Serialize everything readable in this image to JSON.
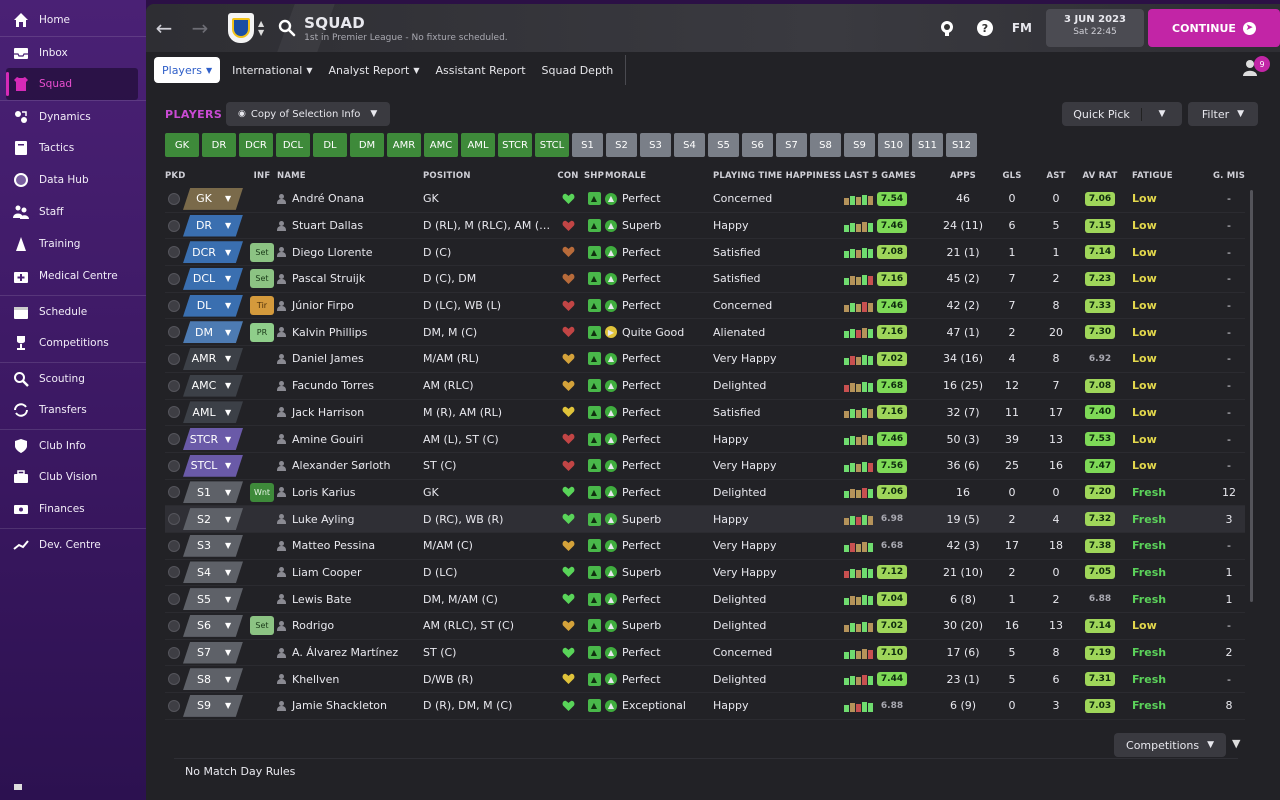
{
  "sidebar": {
    "items": [
      {
        "label": "Home",
        "icon": "home-icon"
      },
      {
        "label": "Inbox",
        "icon": "inbox-icon"
      },
      {
        "label": "Squad",
        "icon": "squad-icon",
        "active": true
      },
      {
        "label": "Dynamics",
        "icon": "dynamics-icon"
      },
      {
        "label": "Tactics",
        "icon": "tactics-icon"
      },
      {
        "label": "Data Hub",
        "icon": "data-hub-icon"
      },
      {
        "label": "Staff",
        "icon": "staff-icon"
      },
      {
        "label": "Training",
        "icon": "training-icon"
      },
      {
        "label": "Medical Centre",
        "icon": "medical-icon"
      },
      {
        "label": "Schedule",
        "icon": "calendar-icon"
      },
      {
        "label": "Competitions",
        "icon": "trophy-icon"
      },
      {
        "label": "Scouting",
        "icon": "scouting-icon"
      },
      {
        "label": "Transfers",
        "icon": "transfers-icon"
      },
      {
        "label": "Club Info",
        "icon": "shield-icon"
      },
      {
        "label": "Club Vision",
        "icon": "briefcase-icon"
      },
      {
        "label": "Finances",
        "icon": "finances-icon"
      },
      {
        "label": "Dev. Centre",
        "icon": "dev-centre-icon"
      }
    ]
  },
  "header": {
    "title": "SQUAD",
    "subtitle": "1st in Premier League - No fixture scheduled.",
    "fm_label": "FM",
    "date": "3 JUN 2023",
    "time": "Sat 22:45",
    "continue_label": "CONTINUE"
  },
  "tabs": {
    "items": [
      "Players",
      "International",
      "Analyst Report",
      "Assistant Report",
      "Squad Depth"
    ],
    "notification_count": "9"
  },
  "toolbar": {
    "players_label": "PLAYERS",
    "view_label": "Copy of Selection Info",
    "quick_pick": "Quick Pick",
    "filter": "Filter"
  },
  "positions": [
    "GK",
    "DR",
    "DCR",
    "DCL",
    "DL",
    "DM",
    "AMR",
    "AMC",
    "AML",
    "STCR",
    "STCL",
    "S1",
    "S2",
    "S3",
    "S4",
    "S5",
    "S6",
    "S7",
    "S8",
    "S9",
    "S10",
    "S11",
    "S12"
  ],
  "columns": [
    "PKD",
    "INF",
    "NAME",
    "POSITION",
    "CON",
    "SHP",
    "MORALE",
    "PLAYING TIME HAPPINESS",
    "LAST 5 GAMES",
    "APPS",
    "GLS",
    "AST",
    "AV RAT",
    "FATIGUE",
    "G. MIS"
  ],
  "players": [
    {
      "pkd": "GK",
      "inf": "",
      "name": "André Onana",
      "pos": "GK",
      "morale": "Perfect",
      "pth": "Concerned",
      "l5": "7.54",
      "apps": "46",
      "gls": "0",
      "ast": "0",
      "avr": "7.06",
      "fat": "Low",
      "gmis": "-"
    },
    {
      "pkd": "DR",
      "inf": "",
      "name": "Stuart Dallas",
      "pos": "D (RL), M (RLC), AM (…",
      "morale": "Superb",
      "pth": "Happy",
      "l5": "7.46",
      "apps": "24 (11)",
      "gls": "6",
      "ast": "5",
      "avr": "7.15",
      "fat": "Low",
      "gmis": "-"
    },
    {
      "pkd": "DCR",
      "inf": "Set",
      "name": "Diego Llorente",
      "pos": "D (C)",
      "morale": "Perfect",
      "pth": "Satisfied",
      "l5": "7.08",
      "apps": "21 (1)",
      "gls": "1",
      "ast": "1",
      "avr": "7.14",
      "fat": "Low",
      "gmis": "-"
    },
    {
      "pkd": "DCL",
      "inf": "Set",
      "name": "Pascal Struijk",
      "pos": "D (C), DM",
      "morale": "Perfect",
      "pth": "Satisfied",
      "l5": "7.16",
      "apps": "45 (2)",
      "gls": "7",
      "ast": "2",
      "avr": "7.23",
      "fat": "Low",
      "gmis": "-"
    },
    {
      "pkd": "DL",
      "inf": "Tir",
      "name": "Júnior Firpo",
      "pos": "D (LC), WB (L)",
      "morale": "Perfect",
      "pth": "Concerned",
      "l5": "7.46",
      "apps": "42 (2)",
      "gls": "7",
      "ast": "8",
      "avr": "7.33",
      "fat": "Low",
      "gmis": "-"
    },
    {
      "pkd": "DM",
      "inf": "PR",
      "name": "Kalvin Phillips",
      "pos": "DM, M (C)",
      "morale": "Quite Good",
      "pth": "Alienated",
      "l5": "7.16",
      "apps": "47 (1)",
      "gls": "2",
      "ast": "20",
      "avr": "7.30",
      "fat": "Low",
      "gmis": "-"
    },
    {
      "pkd": "AMR",
      "inf": "",
      "name": "Daniel James",
      "pos": "M/AM (RL)",
      "morale": "Perfect",
      "pth": "Very Happy",
      "l5": "7.02",
      "apps": "34 (16)",
      "gls": "4",
      "ast": "8",
      "avr": "6.92",
      "fat": "Low",
      "gmis": "-"
    },
    {
      "pkd": "AMC",
      "inf": "",
      "name": "Facundo Torres",
      "pos": "AM (RLC)",
      "morale": "Perfect",
      "pth": "Delighted",
      "l5": "7.68",
      "apps": "16 (25)",
      "gls": "12",
      "ast": "7",
      "avr": "7.08",
      "fat": "Low",
      "gmis": "-"
    },
    {
      "pkd": "AML",
      "inf": "",
      "name": "Jack Harrison",
      "pos": "M (R), AM (RL)",
      "morale": "Perfect",
      "pth": "Satisfied",
      "l5": "7.16",
      "apps": "32 (7)",
      "gls": "11",
      "ast": "17",
      "avr": "7.40",
      "fat": "Low",
      "gmis": "-"
    },
    {
      "pkd": "STCR",
      "inf": "",
      "name": "Amine Gouiri",
      "pos": "AM (L), ST (C)",
      "morale": "Perfect",
      "pth": "Happy",
      "l5": "7.46",
      "apps": "50 (3)",
      "gls": "39",
      "ast": "13",
      "avr": "7.53",
      "fat": "Low",
      "gmis": "-"
    },
    {
      "pkd": "STCL",
      "inf": "",
      "name": "Alexander Sørloth",
      "pos": "ST (C)",
      "morale": "Perfect",
      "pth": "Very Happy",
      "l5": "7.56",
      "apps": "36 (6)",
      "gls": "25",
      "ast": "16",
      "avr": "7.47",
      "fat": "Low",
      "gmis": "-"
    },
    {
      "pkd": "S1",
      "inf": "Wnt",
      "name": "Loris Karius",
      "pos": "GK",
      "morale": "Perfect",
      "pth": "Delighted",
      "l5": "7.06",
      "apps": "16",
      "gls": "0",
      "ast": "0",
      "avr": "7.20",
      "fat": "Fresh",
      "gmis": "12"
    },
    {
      "pkd": "S2",
      "inf": "",
      "name": "Luke Ayling",
      "pos": "D (RC), WB (R)",
      "morale": "Superb",
      "pth": "Happy",
      "l5": "6.98",
      "apps": "19 (5)",
      "gls": "2",
      "ast": "4",
      "avr": "7.32",
      "fat": "Fresh",
      "gmis": "3"
    },
    {
      "pkd": "S3",
      "inf": "",
      "name": "Matteo Pessina",
      "pos": "M/AM (C)",
      "morale": "Perfect",
      "pth": "Very Happy",
      "l5": "6.68",
      "apps": "42 (3)",
      "gls": "17",
      "ast": "18",
      "avr": "7.38",
      "fat": "Fresh",
      "gmis": "-"
    },
    {
      "pkd": "S4",
      "inf": "",
      "name": "Liam Cooper",
      "pos": "D (LC)",
      "morale": "Superb",
      "pth": "Very Happy",
      "l5": "7.12",
      "apps": "21 (10)",
      "gls": "2",
      "ast": "0",
      "avr": "7.05",
      "fat": "Fresh",
      "gmis": "1"
    },
    {
      "pkd": "S5",
      "inf": "",
      "name": "Lewis Bate",
      "pos": "DM, M/AM (C)",
      "morale": "Perfect",
      "pth": "Delighted",
      "l5": "7.04",
      "apps": "6 (8)",
      "gls": "1",
      "ast": "2",
      "avr": "6.88",
      "fat": "Fresh",
      "gmis": "1"
    },
    {
      "pkd": "S6",
      "inf": "Set",
      "name": "Rodrigo",
      "pos": "AM (RLC), ST (C)",
      "morale": "Superb",
      "pth": "Delighted",
      "l5": "7.02",
      "apps": "30 (20)",
      "gls": "16",
      "ast": "13",
      "avr": "7.14",
      "fat": "Low",
      "gmis": "-"
    },
    {
      "pkd": "S7",
      "inf": "",
      "name": "A. Álvarez Martínez",
      "pos": "ST (C)",
      "morale": "Perfect",
      "pth": "Concerned",
      "l5": "7.10",
      "apps": "17 (6)",
      "gls": "5",
      "ast": "8",
      "avr": "7.19",
      "fat": "Fresh",
      "gmis": "2"
    },
    {
      "pkd": "S8",
      "inf": "",
      "name": "Khellven",
      "pos": "D/WB (R)",
      "morale": "Perfect",
      "pth": "Delighted",
      "l5": "7.44",
      "apps": "23 (1)",
      "gls": "5",
      "ast": "6",
      "avr": "7.31",
      "fat": "Fresh",
      "gmis": "-"
    },
    {
      "pkd": "S9",
      "inf": "",
      "name": "Jamie Shackleton",
      "pos": "D (R), DM, M (C)",
      "morale": "Exceptional",
      "pth": "Happy",
      "l5": "6.88",
      "apps": "6 (9)",
      "gls": "0",
      "ast": "3",
      "avr": "7.03",
      "fat": "Fresh",
      "gmis": "8"
    }
  ],
  "footer": {
    "competitions": "Competitions",
    "match_day_rules": "No Match Day Rules"
  }
}
